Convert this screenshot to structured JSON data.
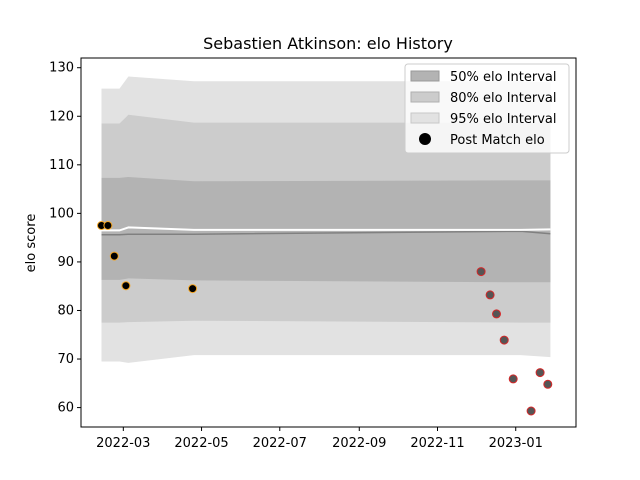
{
  "chart_data": {
    "type": "scatter",
    "title": "Sebastien Atkinson: elo History",
    "xlabel": "",
    "ylabel": "elo score",
    "x_type": "date",
    "xlim": [
      "2022-01-27",
      "2023-02-17"
    ],
    "ylim": [
      56,
      132
    ],
    "x_ticks": [
      "2022-03-01",
      "2022-05-01",
      "2022-07-01",
      "2022-09-01",
      "2022-11-01",
      "2023-01-01"
    ],
    "x_tick_labels": [
      "2022-03",
      "2022-05",
      "2022-07",
      "2022-09",
      "2022-11",
      "2023-01"
    ],
    "y_ticks": [
      60,
      70,
      80,
      90,
      100,
      110,
      120,
      130
    ],
    "grid": false,
    "legend_position": "upper right",
    "legend": [
      {
        "label": "50% elo Interval",
        "kind": "band"
      },
      {
        "label": "80% elo Interval",
        "kind": "band"
      },
      {
        "label": "95% elo Interval",
        "kind": "band"
      },
      {
        "label": "Post Match elo",
        "kind": "marker"
      }
    ],
    "colors": {
      "band50": "#b3b3b3",
      "band80": "#cccccc",
      "band95": "#e2e2e2",
      "mean_line": "#ffffff",
      "prior_line": "#808080",
      "marker_fill": "#000000",
      "marker_edge_win": "#f5a623",
      "marker_fill_loss": "#555555",
      "marker_edge_loss": "#d62728"
    },
    "bands": {
      "x": [
        "2022-02-12",
        "2022-02-26",
        "2022-03-05",
        "2022-04-25",
        "2023-01-05",
        "2023-01-28"
      ],
      "p95_low": [
        69.5,
        69.5,
        69.2,
        70.8,
        70.8,
        70.4
      ],
      "p95_high": [
        125.7,
        125.7,
        128.2,
        127.2,
        127.2,
        127.0
      ],
      "p80_low": [
        77.5,
        77.5,
        77.6,
        77.9,
        77.5,
        77.5
      ],
      "p80_high": [
        118.5,
        118.5,
        120.3,
        118.7,
        118.7,
        118.7
      ],
      "p50_low": [
        86.3,
        86.3,
        86.6,
        86.2,
        85.8,
        85.8
      ],
      "p50_high": [
        107.3,
        107.3,
        107.5,
        106.6,
        106.8,
        106.8
      ],
      "mean": [
        96.5,
        96.5,
        97.1,
        96.6,
        96.6,
        96.7
      ],
      "lower_line": [
        95.6,
        95.6,
        95.7,
        95.7,
        96.3,
        95.8
      ]
    },
    "series": [
      {
        "name": "Post Match elo",
        "points": [
          {
            "x": "2022-02-12",
            "y": 97.5,
            "result": "win"
          },
          {
            "x": "2022-02-17",
            "y": 97.5,
            "result": "win"
          },
          {
            "x": "2022-02-22",
            "y": 91.2,
            "result": "win"
          },
          {
            "x": "2022-03-03",
            "y": 85.1,
            "result": "win"
          },
          {
            "x": "2022-04-24",
            "y": 84.5,
            "result": "win"
          },
          {
            "x": "2022-12-05",
            "y": 88.0,
            "result": "loss"
          },
          {
            "x": "2022-12-12",
            "y": 83.2,
            "result": "loss"
          },
          {
            "x": "2022-12-17",
            "y": 79.3,
            "result": "loss"
          },
          {
            "x": "2022-12-23",
            "y": 73.9,
            "result": "loss"
          },
          {
            "x": "2022-12-30",
            "y": 65.9,
            "result": "loss"
          },
          {
            "x": "2023-01-13",
            "y": 59.3,
            "result": "loss"
          },
          {
            "x": "2023-01-20",
            "y": 67.2,
            "result": "loss"
          },
          {
            "x": "2023-01-26",
            "y": 64.8,
            "result": "loss"
          }
        ]
      }
    ]
  }
}
